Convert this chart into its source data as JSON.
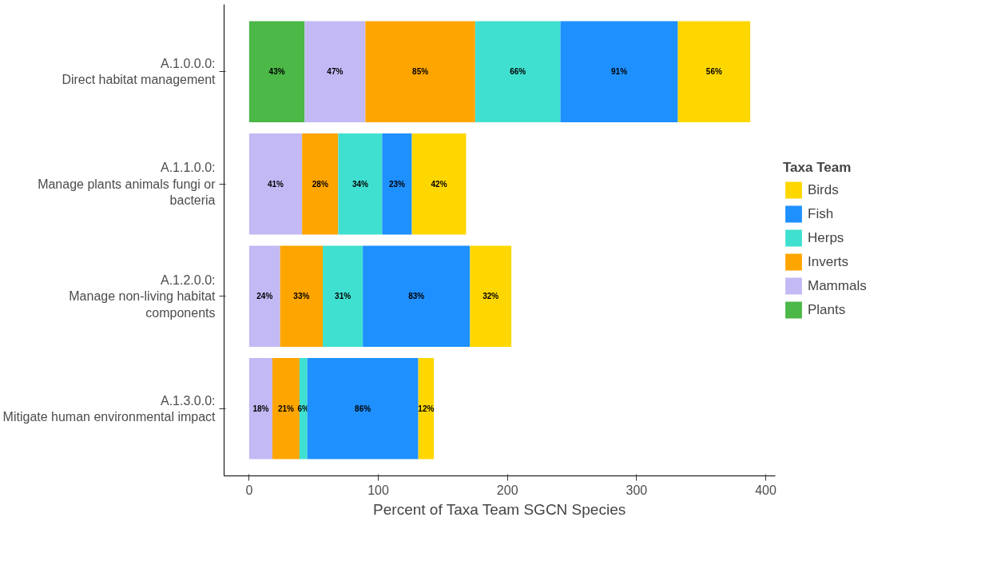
{
  "chart_data": {
    "type": "bar",
    "orientation": "horizontal",
    "stacked": true,
    "xlabel": "Percent of Taxa Team SGCN Species",
    "legend_title": "Taxa Team",
    "legend": "right",
    "grid": false,
    "categories": [
      "A.1.0.0.0: Direct habitat management",
      "A.1.1.0.0: Manage plants animals fungi or bacteria",
      "A.1.2.0.0: Manage non-living habitat components",
      "A.1.3.0.0: Mitigate human environmental impact"
    ],
    "xlim": [
      -19.4,
      407.4
    ],
    "xticks": [
      0,
      100,
      200,
      300,
      400
    ],
    "series": [
      {
        "name": "Plants",
        "color": "#4bb847",
        "values": [
          43,
          null,
          null,
          null
        ],
        "value_labels": [
          "43%",
          null,
          null,
          null
        ]
      },
      {
        "name": "Mammals",
        "color": "#c3b9f5",
        "values": [
          47,
          41,
          24,
          18
        ],
        "value_labels": [
          "47%",
          "41%",
          "24%",
          "18%"
        ]
      },
      {
        "name": "Inverts",
        "color": "#ffa500",
        "values": [
          85,
          28,
          33,
          21
        ],
        "value_labels": [
          "85%",
          "28%",
          "33%",
          "21%"
        ]
      },
      {
        "name": "Herps",
        "color": "#40e0d0",
        "values": [
          66,
          34,
          31,
          6
        ],
        "value_labels": [
          "66%",
          "34%",
          "31%",
          "6%"
        ]
      },
      {
        "name": "Fish",
        "color": "#1e90ff",
        "values": [
          91,
          23,
          83,
          86
        ],
        "value_labels": [
          "91%",
          "23%",
          "83%",
          "86%"
        ]
      },
      {
        "name": "Birds",
        "color": "#ffd700",
        "values": [
          56,
          42,
          32,
          12
        ],
        "value_labels": [
          "56%",
          "42%",
          "32%",
          "12%"
        ]
      }
    ]
  }
}
